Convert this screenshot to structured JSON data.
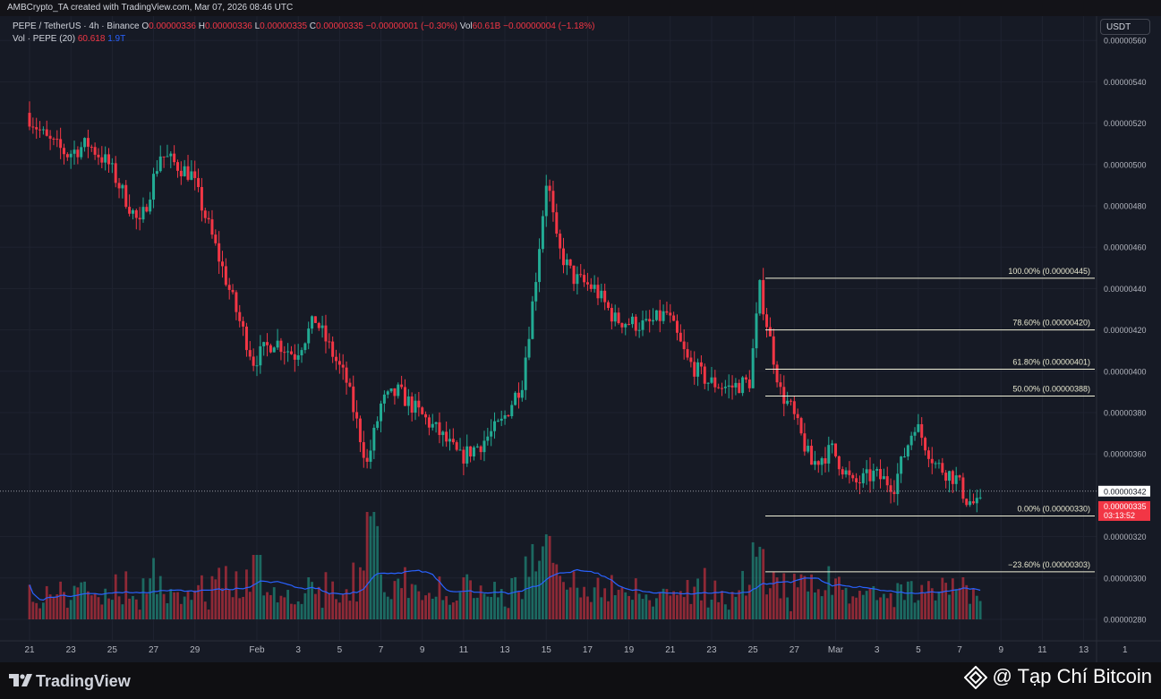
{
  "credit": "AMBCrypto_TA created with TradingView.com, Mar 07, 2026 08:46 UTC",
  "legend": {
    "symbol": "PEPE / TetherUS · 4h · Binance",
    "o_label": "O",
    "o_value": "0.00000336",
    "h_label": "H",
    "h_value": "0.00000336",
    "l_label": "L",
    "l_value": "0.00000335",
    "c_label": "C",
    "c_value": "0.00000335",
    "change": "−0.00000001 (−0.30%)",
    "vol_label": "Vol",
    "vol_value": "60.61B",
    "vol_change": "−0.00000004 (−1.18%)",
    "vol2_label": "Vol · PEPE (20)",
    "vol2_value": "60.618",
    "vol2_ma": "1.9T"
  },
  "currency": "USDT",
  "brand": {
    "name": "TradingView",
    "watermark": "@ Tạp Chí Bitcoin"
  },
  "colors": {
    "up": "#22ab94",
    "down": "#f23645",
    "ma": "#2962ff",
    "fib": "#f0f0d8",
    "bg": "#161a25",
    "last": "#f23645"
  },
  "chart_data": {
    "type": "candlestick",
    "interval": "4h",
    "ylim": [
      2.7e-06,
      5.65e-06
    ],
    "y_ticks": [
      "0.00000280",
      "0.00000300",
      "0.00000320",
      "0.00000360",
      "0.00000380",
      "0.00000400",
      "0.00000420",
      "0.00000440",
      "0.00000460",
      "0.00000480",
      "0.00000500",
      "0.00000520",
      "0.00000540",
      "0.00000560"
    ],
    "y_tick_values": [
      2.8e-06,
      3e-06,
      3.2e-06,
      3.6e-06,
      3.8e-06,
      4e-06,
      4.2e-06,
      4.4e-06,
      4.6e-06,
      4.8e-06,
      5e-06,
      5.2e-06,
      5.4e-06,
      5.6e-06
    ],
    "x_ticks": [
      "21",
      "23",
      "25",
      "27",
      "29",
      "Feb",
      "3",
      "5",
      "7",
      "9",
      "11",
      "13",
      "15",
      "17",
      "19",
      "21",
      "23",
      "25",
      "27",
      "Mar",
      "3",
      "5",
      "7",
      "9",
      "11",
      "13",
      "1"
    ],
    "x_tick_days": [
      0,
      2,
      4,
      6,
      8,
      11,
      13,
      15,
      17,
      19,
      21,
      23,
      25,
      27,
      29,
      31,
      33,
      35,
      37,
      39,
      41,
      43,
      45,
      47,
      49,
      51,
      53
    ],
    "anchors": [
      {
        "day": 0,
        "price": 5.25e-06
      },
      {
        "day": 1,
        "price": 5.12e-06
      },
      {
        "day": 2,
        "price": 5.05e-06
      },
      {
        "day": 3,
        "price": 5.1e-06
      },
      {
        "day": 4,
        "price": 5e-06
      },
      {
        "day": 5.5,
        "price": 4.7e-06
      },
      {
        "day": 6.5,
        "price": 5.05e-06
      },
      {
        "day": 8,
        "price": 4.95e-06
      },
      {
        "day": 9,
        "price": 4.65e-06
      },
      {
        "day": 10.3,
        "price": 4.25e-06
      },
      {
        "day": 11,
        "price": 4.05e-06
      },
      {
        "day": 12,
        "price": 4.15e-06
      },
      {
        "day": 13,
        "price": 4.08e-06
      },
      {
        "day": 14,
        "price": 4.25e-06
      },
      {
        "day": 15.5,
        "price": 3.95e-06
      },
      {
        "day": 16.5,
        "price": 3.55e-06
      },
      {
        "day": 17.2,
        "price": 3.85e-06
      },
      {
        "day": 18,
        "price": 3.9e-06
      },
      {
        "day": 19,
        "price": 3.8e-06
      },
      {
        "day": 20,
        "price": 3.7e-06
      },
      {
        "day": 21,
        "price": 3.58e-06
      },
      {
        "day": 22,
        "price": 3.65e-06
      },
      {
        "day": 23,
        "price": 3.75e-06
      },
      {
        "day": 24,
        "price": 3.95e-06
      },
      {
        "day": 24.6,
        "price": 4.4e-06
      },
      {
        "day": 25.2,
        "price": 4.95e-06
      },
      {
        "day": 25.7,
        "price": 4.6e-06
      },
      {
        "day": 26.5,
        "price": 4.45e-06
      },
      {
        "day": 27.5,
        "price": 4.4e-06
      },
      {
        "day": 28.5,
        "price": 4.25e-06
      },
      {
        "day": 30,
        "price": 4.22e-06
      },
      {
        "day": 31,
        "price": 4.28e-06
      },
      {
        "day": 32,
        "price": 4.05e-06
      },
      {
        "day": 33,
        "price": 3.95e-06
      },
      {
        "day": 34,
        "price": 3.92e-06
      },
      {
        "day": 35,
        "price": 3.95e-06
      },
      {
        "day": 35.5,
        "price": 4.4e-06
      },
      {
        "day": 36.5,
        "price": 3.9e-06
      },
      {
        "day": 37,
        "price": 3.82e-06
      },
      {
        "day": 38,
        "price": 3.55e-06
      },
      {
        "day": 39,
        "price": 3.62e-06
      },
      {
        "day": 40,
        "price": 3.45e-06
      },
      {
        "day": 41,
        "price": 3.5e-06
      },
      {
        "day": 42,
        "price": 3.45e-06
      },
      {
        "day": 43,
        "price": 3.75e-06
      },
      {
        "day": 44,
        "price": 3.55e-06
      },
      {
        "day": 45,
        "price": 3.48e-06
      },
      {
        "day": 45.5,
        "price": 3.38e-06
      },
      {
        "day": 46,
        "price": 3.35e-06
      }
    ],
    "volume_scale": [
      0,
      140
    ],
    "fib_levels": [
      {
        "label": "100.00% (0.00000445)",
        "value": 4.45e-06
      },
      {
        "label": "78.60% (0.00000420)",
        "value": 4.2e-06
      },
      {
        "label": "61.80% (0.00000401)",
        "value": 4.01e-06
      },
      {
        "label": "50.00% (0.00000388)",
        "value": 3.88e-06
      },
      {
        "label": "0.00% (0.00000330)",
        "value": 3.3e-06
      },
      {
        "label": "−23.60% (0.00000303)",
        "value": 3.03e-06
      }
    ],
    "fib_start_day": 35.6,
    "dotted_level": {
      "label": "0.00000342",
      "value": 3.42e-06
    },
    "last_price": {
      "label": "0.00000335",
      "value": 3.35e-06,
      "countdown": "03:13:52"
    }
  }
}
